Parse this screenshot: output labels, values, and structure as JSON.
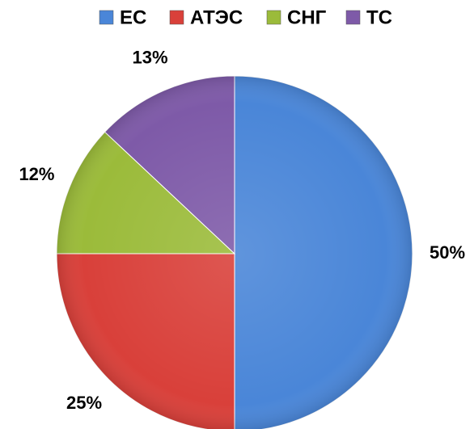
{
  "chart_data": {
    "type": "pie",
    "categories": [
      "ЕС",
      "АТЭС",
      "СНГ",
      "ТС"
    ],
    "values": [
      50,
      25,
      12,
      13
    ],
    "value_labels": [
      "50%",
      "25%",
      "12%",
      "13%"
    ],
    "colors": [
      "#4a86d8",
      "#d9403a",
      "#9bbb3a",
      "#7e5aa8"
    ],
    "legend": "top"
  }
}
